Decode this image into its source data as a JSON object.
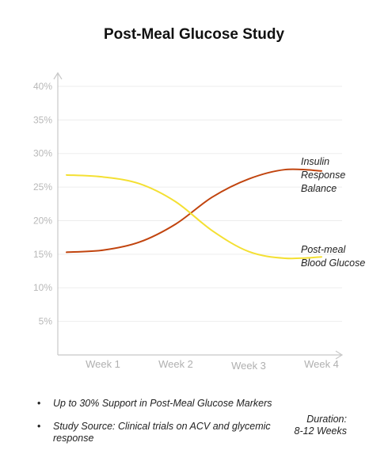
{
  "title": "Post-Meal Glucose Study",
  "chart_data": {
    "type": "line",
    "title": "Post-Meal Glucose Study",
    "categories": [
      "Week 1",
      "Week 2",
      "Week 3",
      "Week 4"
    ],
    "y_ticks": [
      "5%",
      "10%",
      "15%",
      "20%",
      "25%",
      "30%",
      "35%",
      "40%"
    ],
    "ylim": [
      0,
      42
    ],
    "grid": true,
    "series": [
      {
        "name": "Insulin Response Balance",
        "label_lines": [
          "Insulin",
          "Response",
          "Balance"
        ],
        "color": "#c1440e",
        "x": [
          0.5,
          1.0,
          1.5,
          2.0,
          2.5,
          3.0,
          3.5,
          4.0
        ],
        "values": [
          15.3,
          15.6,
          16.8,
          19.5,
          23.5,
          26.2,
          27.6,
          27.4
        ]
      },
      {
        "name": "Post-meal Blood Glucose",
        "label_lines": [
          "Post-meal",
          "Blood Glucose"
        ],
        "color": "#f4e033",
        "x": [
          0.5,
          1.0,
          1.5,
          2.0,
          2.5,
          3.0,
          3.5,
          4.0
        ],
        "values": [
          26.8,
          26.5,
          25.5,
          22.8,
          18.5,
          15.4,
          14.4,
          14.6
        ]
      }
    ]
  },
  "notes": [
    "Up to 30% Support in Post-Meal Glucose Markers",
    "Study Source: Clinical trials on ACV and glycemic response"
  ],
  "duration": [
    "Duration:",
    "8-12 Weeks"
  ]
}
